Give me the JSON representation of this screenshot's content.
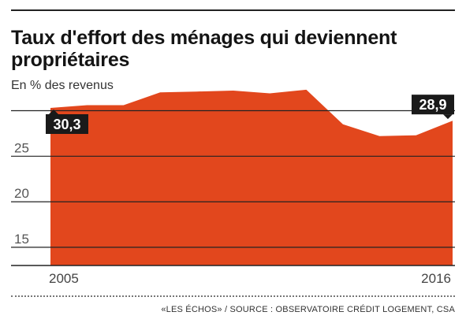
{
  "header": {
    "title_line1": "Taux d'effort des ménages qui deviennent",
    "title_line2": "propriétaires",
    "subtitle": "En % des revenus"
  },
  "footer": {
    "source": "«LES ÉCHOS» / SOURCE : OBSERVATOIRE CRÉDIT LOGEMENT, CSA"
  },
  "colors": {
    "area": "#e2471d",
    "gridline": "#222222",
    "label_box": "#1a1a1a",
    "label_text": "#ffffff"
  },
  "chart_data": {
    "type": "area",
    "title": "Taux d'effort des ménages qui deviennent propriétaires",
    "ylabel": "En % des revenus",
    "x": [
      2005,
      2006,
      2007,
      2008,
      2009,
      2010,
      2011,
      2012,
      2013,
      2014,
      2015,
      2016
    ],
    "values": [
      30.3,
      30.6,
      30.6,
      32.0,
      32.1,
      32.2,
      31.9,
      32.3,
      28.5,
      27.2,
      27.3,
      28.9
    ],
    "ylim": [
      13,
      33.5
    ],
    "yticks": [
      15,
      20,
      25
    ],
    "x_tick_labels": [
      {
        "x": 2005,
        "label": "2005"
      },
      {
        "x": 2016,
        "label": "2016"
      }
    ],
    "gridlines": [
      15,
      20,
      25,
      30
    ],
    "annotations": [
      {
        "x": 2005,
        "y": 30.3,
        "label": "30,3"
      },
      {
        "x": 2016,
        "y": 28.9,
        "label": "28,9"
      }
    ],
    "grid": true,
    "legend": "none"
  }
}
